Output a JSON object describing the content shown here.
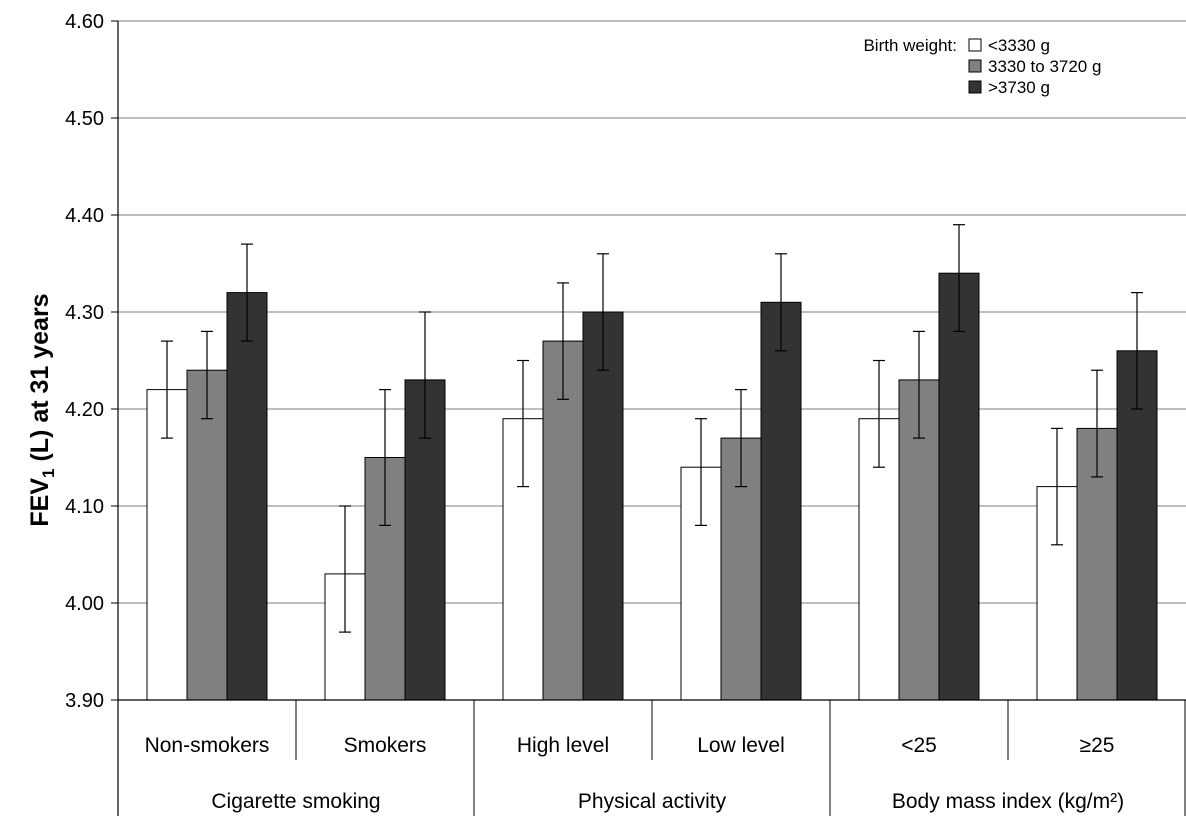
{
  "chart_data": {
    "type": "bar",
    "ylabel_main": "FEV",
    "ylabel_sub": "1",
    "ylabel_rest": " (L) at 31 years",
    "ylim": [
      3.9,
      4.6
    ],
    "yticks": [
      "3.90",
      "4.00",
      "4.10",
      "4.20",
      "4.30",
      "4.40",
      "4.50",
      "4.60"
    ],
    "grid": true,
    "legend": {
      "title": "Birth weight:",
      "placement": "top-right",
      "entries": [
        "<3330 g",
        "3330 to 3720 g",
        ">3730 g"
      ]
    },
    "colors": [
      "#ffffff",
      "#808080",
      "#333333"
    ],
    "categories": [
      "Non-smokers",
      "Smokers",
      "High level",
      "Low level",
      "<25",
      "≥25"
    ],
    "groups": [
      {
        "label": "Cigarette smoking",
        "span": 2
      },
      {
        "label": "Physical activity",
        "span": 2
      },
      {
        "label": "Body mass index (kg/m²)",
        "span": 2
      }
    ],
    "series": [
      {
        "name": "<3330 g",
        "values": [
          4.22,
          4.03,
          4.19,
          4.14,
          4.19,
          4.12
        ],
        "ci_low": [
          4.17,
          3.97,
          4.12,
          4.08,
          4.14,
          4.06
        ],
        "ci_high": [
          4.27,
          4.1,
          4.25,
          4.19,
          4.25,
          4.18
        ]
      },
      {
        "name": "3330 to 3720 g",
        "values": [
          4.24,
          4.15,
          4.27,
          4.17,
          4.23,
          4.18
        ],
        "ci_low": [
          4.19,
          4.08,
          4.21,
          4.12,
          4.17,
          4.13
        ],
        "ci_high": [
          4.28,
          4.22,
          4.33,
          4.22,
          4.28,
          4.24
        ]
      },
      {
        "name": ">3730 g",
        "values": [
          4.32,
          4.23,
          4.3,
          4.31,
          4.34,
          4.26
        ],
        "ci_low": [
          4.27,
          4.17,
          4.24,
          4.26,
          4.28,
          4.2
        ],
        "ci_high": [
          4.37,
          4.3,
          4.36,
          4.36,
          4.39,
          4.32
        ]
      }
    ]
  }
}
